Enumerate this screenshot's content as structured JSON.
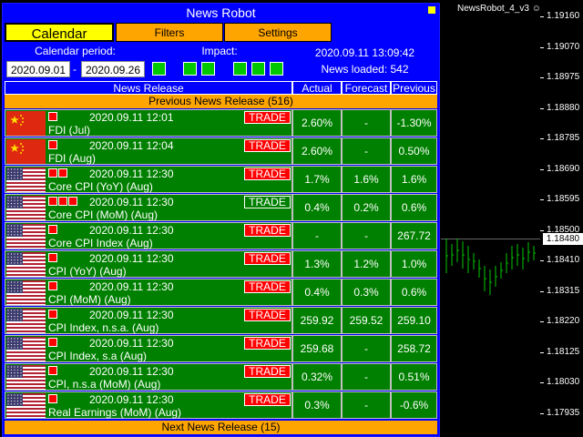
{
  "panel": {
    "title": "News Robot",
    "tabs": [
      {
        "label": "Calendar",
        "active": true
      },
      {
        "label": "Filters",
        "active": false
      },
      {
        "label": "Settings",
        "active": false
      }
    ],
    "period_label": "Calendar period:",
    "date_from": "2020.09.01",
    "date_sep": "-",
    "date_to": "2020.09.26",
    "impact_label": "Impact:",
    "info_time": "2020.09.11 13:09:42",
    "info_loaded": "News loaded: 542",
    "headers": {
      "release": "News Release",
      "actual": "Actual",
      "forecast": "Forecast",
      "previous": "Previous"
    },
    "previous_section": "Previous News Release (516)",
    "next_section": "Next News Release (15)",
    "trade_label": "TRADE",
    "rows": [
      {
        "flag": "cn",
        "impact": 1,
        "time": "2020.09.11 12:01",
        "name": "FDI (Jul)",
        "trade_style": "red",
        "actual": "2.60%",
        "forecast": "-",
        "previous": "-1.30%"
      },
      {
        "flag": "cn",
        "impact": 1,
        "time": "2020.09.11 12:04",
        "name": "FDI (Aug)",
        "trade_style": "red",
        "actual": "2.60%",
        "forecast": "-",
        "previous": "0.50%"
      },
      {
        "flag": "us",
        "impact": 2,
        "time": "2020.09.11 12:30",
        "name": "Core CPI (YoY) (Aug)",
        "trade_style": "red",
        "actual": "1.7%",
        "forecast": "1.6%",
        "previous": "1.6%"
      },
      {
        "flag": "us",
        "impact": 3,
        "time": "2020.09.11 12:30",
        "name": "Core CPI (MoM) (Aug)",
        "trade_style": "green",
        "actual": "0.4%",
        "forecast": "0.2%",
        "previous": "0.6%"
      },
      {
        "flag": "us",
        "impact": 1,
        "time": "2020.09.11 12:30",
        "name": "Core CPI Index (Aug)",
        "trade_style": "red",
        "actual": "-",
        "forecast": "-",
        "previous": "267.72"
      },
      {
        "flag": "us",
        "impact": 1,
        "time": "2020.09.11 12:30",
        "name": "CPI (YoY) (Aug)",
        "trade_style": "red",
        "actual": "1.3%",
        "forecast": "1.2%",
        "previous": "1.0%"
      },
      {
        "flag": "us",
        "impact": 1,
        "time": "2020.09.11 12:30",
        "name": "CPI (MoM) (Aug)",
        "trade_style": "red",
        "actual": "0.4%",
        "forecast": "0.3%",
        "previous": "0.6%"
      },
      {
        "flag": "us",
        "impact": 1,
        "time": "2020.09.11 12:30",
        "name": "CPI Index, n.s.a. (Aug)",
        "trade_style": "red",
        "actual": "259.92",
        "forecast": "259.52",
        "previous": "259.10"
      },
      {
        "flag": "us",
        "impact": 1,
        "time": "2020.09.11 12:30",
        "name": "CPI Index, s.a (Aug)",
        "trade_style": "red",
        "actual": "259.68",
        "forecast": "-",
        "previous": "258.72"
      },
      {
        "flag": "us",
        "impact": 1,
        "time": "2020.09.11 12:30",
        "name": "CPI, n.s.a (MoM) (Aug)",
        "trade_style": "red",
        "actual": "0.32%",
        "forecast": "-",
        "previous": "0.51%"
      },
      {
        "flag": "us",
        "impact": 1,
        "time": "2020.09.11 12:30",
        "name": "Real Earnings (MoM) (Aug)",
        "trade_style": "red",
        "actual": "0.3%",
        "forecast": "-",
        "previous": "-0.6%"
      }
    ]
  },
  "chart": {
    "title": "NewsRobot_4_v3",
    "title_icon": "smiley-icon",
    "price_ticks": [
      "1.19160",
      "1.19070",
      "1.18975",
      "1.18880",
      "1.18785",
      "1.18690",
      "1.18595",
      "1.18500",
      "1.18410",
      "1.18315",
      "1.18220",
      "1.18125",
      "1.18030",
      "1.17935"
    ],
    "current_price": "1.18480"
  }
}
